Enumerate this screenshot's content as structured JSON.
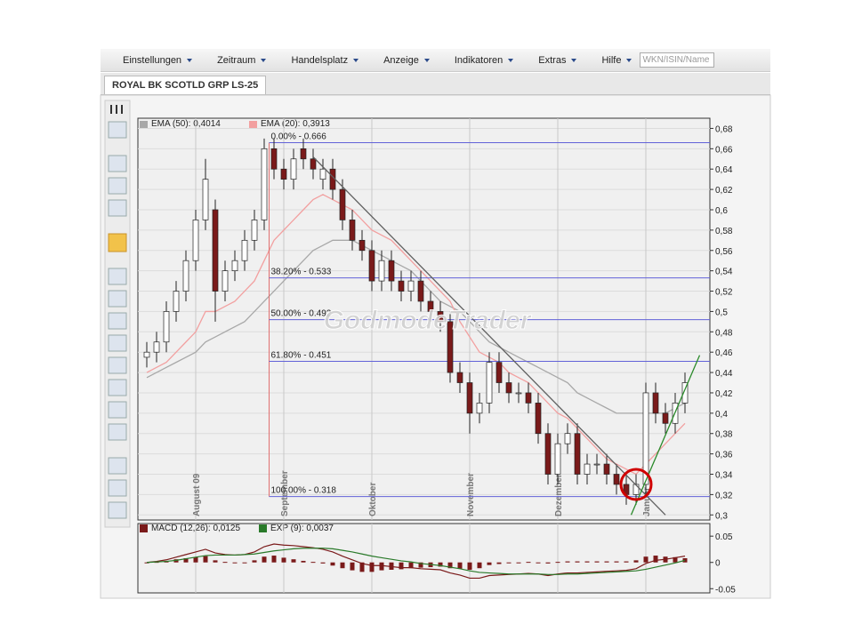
{
  "menu": {
    "items": [
      "Einstellungen",
      "Zeitraum",
      "Handelsplatz",
      "Anzeige",
      "Indikatoren",
      "Extras",
      "Hilfe"
    ],
    "search_placeholder": "WKN/ISIN/Name"
  },
  "tab": {
    "label": "ROYAL BK SCOTLD GRP LS-25"
  },
  "chart_data": {
    "type": "candlestick",
    "categories": [
      null,
      null,
      null,
      null,
      null,
      "August 09",
      null,
      null,
      null,
      null,
      null,
      null,
      null,
      null,
      "September",
      null,
      null,
      null,
      null,
      null,
      null,
      null,
      null,
      "Oktober",
      null,
      null,
      null,
      null,
      null,
      null,
      null,
      null,
      null,
      "November",
      null,
      null,
      null,
      null,
      null,
      null,
      null,
      null,
      "Dezember",
      null,
      null,
      null,
      null,
      null,
      null,
      null,
      null,
      "Januar",
      null,
      null,
      null,
      null
    ],
    "open": [
      0.455,
      0.46,
      0.47,
      0.5,
      0.52,
      0.55,
      0.59,
      0.6,
      0.52,
      0.54,
      0.55,
      0.57,
      0.59,
      0.66,
      0.64,
      0.63,
      0.66,
      0.65,
      0.63,
      0.64,
      0.62,
      0.59,
      0.57,
      0.56,
      0.53,
      0.55,
      0.53,
      0.52,
      0.53,
      0.51,
      0.5,
      0.49,
      0.44,
      0.43,
      0.4,
      0.41,
      0.45,
      0.43,
      0.42,
      0.42,
      0.41,
      0.38,
      0.34,
      0.37,
      0.38,
      0.34,
      0.35,
      0.35,
      0.34,
      0.33,
      0.32,
      0.33,
      0.42,
      0.4,
      0.39,
      0.41
    ],
    "high": [
      0.47,
      0.48,
      0.51,
      0.53,
      0.56,
      0.6,
      0.65,
      0.61,
      0.55,
      0.56,
      0.58,
      0.6,
      0.67,
      0.67,
      0.65,
      0.66,
      0.67,
      0.66,
      0.65,
      0.65,
      0.63,
      0.6,
      0.58,
      0.57,
      0.56,
      0.56,
      0.54,
      0.54,
      0.54,
      0.52,
      0.51,
      0.5,
      0.45,
      0.44,
      0.42,
      0.46,
      0.46,
      0.44,
      0.43,
      0.43,
      0.42,
      0.39,
      0.38,
      0.39,
      0.39,
      0.36,
      0.36,
      0.36,
      0.35,
      0.34,
      0.34,
      0.43,
      0.43,
      0.41,
      0.42,
      0.44
    ],
    "low": [
      0.445,
      0.45,
      0.46,
      0.49,
      0.51,
      0.54,
      0.58,
      0.49,
      0.51,
      0.53,
      0.54,
      0.56,
      0.58,
      0.63,
      0.62,
      0.62,
      0.64,
      0.63,
      0.62,
      0.61,
      0.58,
      0.56,
      0.55,
      0.52,
      0.52,
      0.52,
      0.51,
      0.51,
      0.5,
      0.49,
      0.48,
      0.43,
      0.42,
      0.38,
      0.39,
      0.4,
      0.42,
      0.41,
      0.41,
      0.4,
      0.37,
      0.33,
      0.33,
      0.36,
      0.33,
      0.33,
      0.34,
      0.33,
      0.32,
      0.31,
      0.31,
      0.32,
      0.39,
      0.38,
      0.38,
      0.4
    ],
    "close": [
      0.46,
      0.47,
      0.5,
      0.52,
      0.55,
      0.59,
      0.63,
      0.52,
      0.54,
      0.55,
      0.57,
      0.59,
      0.66,
      0.64,
      0.63,
      0.65,
      0.65,
      0.64,
      0.64,
      0.62,
      0.59,
      0.57,
      0.56,
      0.53,
      0.55,
      0.53,
      0.52,
      0.53,
      0.51,
      0.5,
      0.49,
      0.44,
      0.43,
      0.4,
      0.41,
      0.45,
      0.43,
      0.42,
      0.42,
      0.41,
      0.38,
      0.34,
      0.37,
      0.38,
      0.34,
      0.35,
      0.35,
      0.34,
      0.33,
      0.32,
      0.33,
      0.42,
      0.4,
      0.39,
      0.41,
      0.43
    ],
    "up_color": "#ffffff",
    "down_color": "#7a1a1a",
    "series": [
      {
        "name": "EMA (50): 0,4014",
        "color": "#a8a8a8",
        "values": [
          0.435,
          0.44,
          0.445,
          0.45,
          0.455,
          0.46,
          0.47,
          0.475,
          0.48,
          0.485,
          0.49,
          0.5,
          0.51,
          0.52,
          0.53,
          0.54,
          0.55,
          0.56,
          0.565,
          0.57,
          0.57,
          0.57,
          0.565,
          0.56,
          0.555,
          0.55,
          0.545,
          0.54,
          0.53,
          0.52,
          0.51,
          0.505,
          0.5,
          0.49,
          0.48,
          0.47,
          0.465,
          0.46,
          0.455,
          0.45,
          0.445,
          0.44,
          0.435,
          0.43,
          0.42,
          0.415,
          0.41,
          0.405,
          0.4,
          0.4,
          0.4,
          0.4,
          0.4,
          0.4,
          0.405,
          0.41
        ]
      },
      {
        "name": "EMA (20): 0,3913",
        "color": "#f2a0a0",
        "values": [
          0.44,
          0.445,
          0.45,
          0.46,
          0.47,
          0.48,
          0.5,
          0.5,
          0.505,
          0.51,
          0.52,
          0.53,
          0.55,
          0.57,
          0.58,
          0.59,
          0.6,
          0.61,
          0.615,
          0.61,
          0.605,
          0.6,
          0.59,
          0.58,
          0.575,
          0.57,
          0.56,
          0.55,
          0.54,
          0.53,
          0.52,
          0.51,
          0.49,
          0.475,
          0.46,
          0.455,
          0.45,
          0.44,
          0.435,
          0.43,
          0.42,
          0.41,
          0.4,
          0.395,
          0.385,
          0.375,
          0.365,
          0.355,
          0.35,
          0.345,
          0.34,
          0.35,
          0.36,
          0.37,
          0.38,
          0.39
        ]
      }
    ],
    "ylim": [
      0.295,
      0.69
    ],
    "yticks": [
      {
        "value": 0.3,
        "label": "0,3"
      },
      {
        "value": 0.32,
        "label": "0,32"
      },
      {
        "value": 0.34,
        "label": "0,34"
      },
      {
        "value": 0.36,
        "label": "0,36"
      },
      {
        "value": 0.38,
        "label": "0,38"
      },
      {
        "value": 0.4,
        "label": "0,4"
      },
      {
        "value": 0.42,
        "label": "0,42"
      },
      {
        "value": 0.44,
        "label": "0,44"
      },
      {
        "value": 0.46,
        "label": "0,46"
      },
      {
        "value": 0.48,
        "label": "0,48"
      },
      {
        "value": 0.5,
        "label": "0,5"
      },
      {
        "value": 0.52,
        "label": "0,52"
      },
      {
        "value": 0.54,
        "label": "0,54"
      },
      {
        "value": 0.56,
        "label": "0,56"
      },
      {
        "value": 0.58,
        "label": "0,58"
      },
      {
        "value": 0.6,
        "label": "0,6"
      },
      {
        "value": 0.62,
        "label": "0,62"
      },
      {
        "value": 0.64,
        "label": "0,64"
      },
      {
        "value": 0.66,
        "label": "0,66"
      },
      {
        "value": 0.68,
        "label": "0,68"
      }
    ],
    "grid": true,
    "fibonacci": {
      "color": "#6262d8",
      "anchor_color": "#e07070",
      "from": 12.5,
      "levels": [
        {
          "label": "0.00% - 0.666",
          "value": 0.666
        },
        {
          "label": "38.20% - 0.533",
          "value": 0.533
        },
        {
          "label": "50.00% - 0.492",
          "value": 0.492
        },
        {
          "label": "61.80% - 0.451",
          "value": 0.451
        },
        {
          "label": "100.00% - 0.318",
          "value": 0.318
        }
      ]
    },
    "trendlines": [
      {
        "from": [
          17,
          0.652
        ],
        "to": [
          53,
          0.3
        ],
        "color": "#606060"
      },
      {
        "from": [
          49.5,
          0.3
        ],
        "to": [
          56.5,
          0.457
        ],
        "color": "#2a8a2a"
      }
    ],
    "circle": {
      "at": [
        50,
        0.33
      ],
      "color": "#d00000"
    },
    "watermark": "GodmodeTrader",
    "indicator": {
      "type": "macd",
      "ylim": [
        -0.058,
        0.074
      ],
      "yticks": [
        {
          "value": 0.05,
          "label": "0.05"
        },
        0,
        {
          "value": -0.05,
          "label": "-0.05"
        }
      ],
      "series": [
        {
          "name": "MACD (12,26): 0,0125",
          "color": "#7a1a1a",
          "values": [
            0,
            0.002,
            0.005,
            0.01,
            0.015,
            0.02,
            0.025,
            0.018,
            0.015,
            0.014,
            0.015,
            0.02,
            0.03,
            0.035,
            0.033,
            0.032,
            0.03,
            0.028,
            0.025,
            0.02,
            0.012,
            0.005,
            -0.002,
            -0.006,
            -0.006,
            -0.008,
            -0.01,
            -0.01,
            -0.012,
            -0.013,
            -0.014,
            -0.02,
            -0.024,
            -0.03,
            -0.03,
            -0.025,
            -0.024,
            -0.023,
            -0.022,
            -0.021,
            -0.022,
            -0.025,
            -0.022,
            -0.02,
            -0.02,
            -0.019,
            -0.018,
            -0.017,
            -0.016,
            -0.015,
            -0.012,
            -0.002,
            0.004,
            0.006,
            0.009,
            0.012
          ]
        },
        {
          "name": "EXP (9): 0,0037",
          "color": "#2a7a2a",
          "values": [
            0,
            0.001,
            0.002,
            0.004,
            0.007,
            0.01,
            0.013,
            0.014,
            0.014,
            0.014,
            0.015,
            0.016,
            0.019,
            0.022,
            0.024,
            0.026,
            0.027,
            0.027,
            0.027,
            0.026,
            0.023,
            0.02,
            0.016,
            0.012,
            0.009,
            0.006,
            0.003,
            0.001,
            -0.002,
            -0.004,
            -0.006,
            -0.009,
            -0.012,
            -0.016,
            -0.019,
            -0.02,
            -0.021,
            -0.022,
            -0.022,
            -0.022,
            -0.022,
            -0.023,
            -0.023,
            -0.022,
            -0.022,
            -0.021,
            -0.02,
            -0.019,
            -0.018,
            -0.017,
            -0.016,
            -0.013,
            -0.009,
            -0.005,
            -0.001,
            0.004
          ]
        }
      ],
      "histogram": {
        "color": "#7a1a1a",
        "values": [
          0,
          0.001,
          0.003,
          0.006,
          0.008,
          0.01,
          0.012,
          0.004,
          0.001,
          0,
          0,
          0.004,
          0.011,
          0.013,
          0.009,
          0.006,
          0.003,
          0.001,
          -0.002,
          -0.006,
          -0.011,
          -0.015,
          -0.018,
          -0.018,
          -0.015,
          -0.014,
          -0.013,
          -0.011,
          -0.01,
          -0.009,
          -0.008,
          -0.011,
          -0.012,
          -0.014,
          -0.011,
          -0.005,
          -0.003,
          -0.001,
          0,
          0.001,
          0,
          -0.002,
          0.001,
          0.002,
          0.002,
          0.002,
          0.002,
          0.002,
          0.002,
          0.002,
          0.004,
          0.011,
          0.013,
          0.011,
          0.01,
          0.008
        ]
      }
    }
  }
}
